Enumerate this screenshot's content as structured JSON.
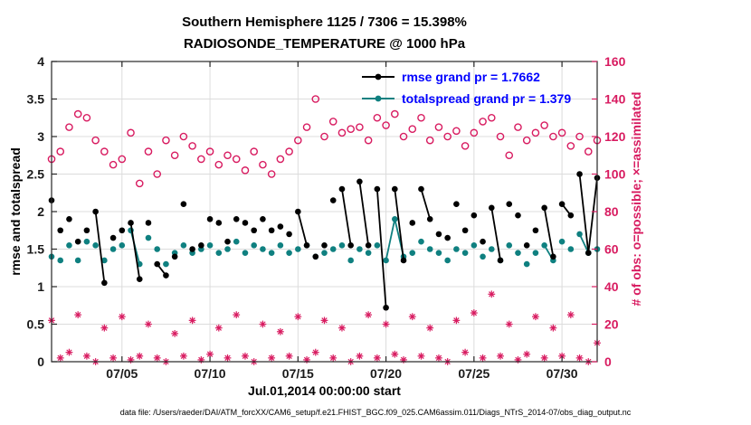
{
  "figure": {
    "title": "Southern Hemisphere 1125 / 7306 = 15.398%",
    "subtitle": "RADIOSONDE_TEMPERATURE @ 1000 hPa",
    "xlabel": "Jul.01,2014 00:00:00 start",
    "ylabel_left": "rmse and totalspread",
    "ylabel_right": "# of obs: o=possible; ×=assimilated",
    "footer": "data file: /Users/raeder/DAI/ATM_forcXX/CAM6_setup/f.e21.FHIST_BGC.f09_025.CAM6assim.011/Diags_NTrS_2014-07/obs_diag_output.nc"
  },
  "legend": {
    "text_color": "#0000ff",
    "items": [
      {
        "label": "rmse grand pr = 1.7662",
        "color": "#000000",
        "marker": "dot"
      },
      {
        "label": "totalspread grand pr = 1.379",
        "color": "#0f8080",
        "marker": "dot"
      }
    ]
  },
  "chart_data": {
    "type": "line",
    "title": "Southern Hemisphere 1125 / 7306 = 15.398%",
    "subtitle": "RADIOSONDE_TEMPERATURE @ 1000 hPa",
    "x_unit": "days since Jul.01,2014 00:00:00",
    "x_start_days": 0,
    "x_step_days": 0.5,
    "xlim": [
      0,
      31
    ],
    "xticks": [
      {
        "t": 4,
        "label": "07/05"
      },
      {
        "t": 9,
        "label": "07/10"
      },
      {
        "t": 14,
        "label": "07/15"
      },
      {
        "t": 19,
        "label": "07/20"
      },
      {
        "t": 24,
        "label": "07/25"
      },
      {
        "t": 29,
        "label": "07/30"
      }
    ],
    "ylim_left": [
      0,
      4
    ],
    "yticks_left": [
      {
        "v": 0,
        "label": "0"
      },
      {
        "v": 0.5,
        "label": "0.5"
      },
      {
        "v": 1,
        "label": "1"
      },
      {
        "v": 1.5,
        "label": "1.5"
      },
      {
        "v": 2,
        "label": "2"
      },
      {
        "v": 2.5,
        "label": "2.5"
      },
      {
        "v": 3,
        "label": "3"
      },
      {
        "v": 3.5,
        "label": "3.5"
      },
      {
        "v": 4,
        "label": "4"
      }
    ],
    "ylim_right": [
      0,
      160
    ],
    "yticks_right": [
      {
        "v": 0,
        "label": "0"
      },
      {
        "v": 20,
        "label": "20"
      },
      {
        "v": 40,
        "label": "40"
      },
      {
        "v": 60,
        "label": "60"
      },
      {
        "v": 80,
        "label": "80"
      },
      {
        "v": 100,
        "label": "100"
      },
      {
        "v": 120,
        "label": "120"
      },
      {
        "v": 140,
        "label": "140"
      },
      {
        "v": 160,
        "label": "160"
      }
    ],
    "grid": true,
    "colors": {
      "rmse": "#000000",
      "totalspread": "#0f8080",
      "obs": "#d81b60",
      "grid": "#dcdcdc",
      "axis": "#262626",
      "tick_text": "#1a1a1a"
    },
    "series": [
      {
        "name": "possible-obs",
        "axis": "right",
        "marker": "open-circle",
        "color": "#d81b60",
        "values": [
          108,
          112,
          125,
          132,
          130,
          118,
          112,
          105,
          108,
          122,
          95,
          112,
          100,
          118,
          110,
          120,
          115,
          108,
          112,
          105,
          110,
          108,
          102,
          112,
          105,
          100,
          108,
          112,
          118,
          125,
          140,
          120,
          128,
          122,
          124,
          125,
          118,
          130,
          126,
          132,
          120,
          124,
          130,
          118,
          125,
          120,
          123,
          115,
          122,
          128,
          130,
          120,
          110,
          125,
          118,
          122,
          126,
          120,
          122,
          115,
          120,
          112,
          118
        ],
        "segments": []
      },
      {
        "name": "assimilated-obs",
        "axis": "right",
        "marker": "asterisk",
        "color": "#d81b60",
        "values": [
          22,
          2,
          5,
          25,
          3,
          0,
          18,
          2,
          24,
          1,
          3,
          20,
          2,
          0,
          15,
          3,
          22,
          1,
          4,
          18,
          2,
          25,
          3,
          0,
          20,
          2,
          16,
          3,
          24,
          1,
          5,
          22,
          2,
          18,
          0,
          3,
          25,
          2,
          20,
          4,
          1,
          24,
          3,
          18,
          2,
          0,
          22,
          5,
          26,
          2,
          36,
          3,
          20,
          1,
          4,
          24,
          2,
          18,
          3,
          25,
          2,
          0,
          10
        ],
        "segments": []
      },
      {
        "name": "totalspread",
        "axis": "left",
        "marker": "dot",
        "color": "#0f8080",
        "values": [
          1.4,
          1.35,
          1.55,
          1.35,
          1.6,
          1.55,
          1.35,
          1.5,
          1.55,
          1.75,
          1.3,
          1.65,
          1.5,
          1.3,
          1.45,
          1.55,
          1.45,
          1.5,
          1.55,
          1.45,
          1.5,
          1.6,
          1.45,
          1.55,
          1.5,
          1.45,
          1.55,
          1.45,
          1.5,
          1.55,
          1.4,
          1.45,
          1.5,
          1.55,
          1.35,
          1.5,
          1.45,
          1.55,
          1.35,
          1.9,
          1.4,
          1.45,
          1.6,
          1.5,
          1.45,
          1.35,
          1.5,
          1.45,
          1.55,
          1.4,
          1.5,
          1.35,
          1.55,
          1.45,
          1.3,
          1.45,
          1.55,
          1.35,
          1.6,
          1.5,
          1.7,
          1.45,
          1.5
        ],
        "segments": [
          [
            9,
            10
          ],
          [
            38,
            39
          ],
          [
            39,
            40
          ],
          [
            56,
            57
          ],
          [
            60,
            61
          ]
        ]
      },
      {
        "name": "rmse",
        "axis": "left",
        "marker": "dot",
        "color": "#000000",
        "values": [
          2.15,
          1.75,
          1.9,
          1.6,
          1.75,
          2.0,
          1.05,
          1.65,
          1.75,
          1.85,
          1.1,
          1.85,
          1.3,
          1.15,
          1.4,
          2.1,
          1.5,
          1.55,
          1.9,
          1.85,
          1.6,
          1.9,
          1.85,
          1.75,
          1.9,
          1.75,
          1.8,
          1.7,
          2.0,
          1.55,
          1.4,
          1.55,
          2.15,
          2.3,
          1.55,
          2.4,
          1.55,
          2.3,
          0.72,
          2.3,
          1.35,
          1.85,
          2.3,
          1.9,
          1.7,
          1.65,
          2.1,
          1.75,
          1.95,
          1.6,
          2.05,
          1.35,
          2.1,
          1.95,
          1.55,
          1.75,
          2.05,
          1.4,
          2.1,
          1.95,
          2.5,
          1.45,
          2.45
        ],
        "segments": [
          [
            5,
            6
          ],
          [
            9,
            10
          ],
          [
            12,
            13
          ],
          [
            28,
            29
          ],
          [
            33,
            34
          ],
          [
            35,
            36
          ],
          [
            37,
            38
          ],
          [
            39,
            40
          ],
          [
            42,
            43
          ],
          [
            50,
            51
          ],
          [
            56,
            57
          ],
          [
            58,
            59
          ],
          [
            60,
            61
          ],
          [
            61,
            62
          ]
        ]
      }
    ]
  }
}
